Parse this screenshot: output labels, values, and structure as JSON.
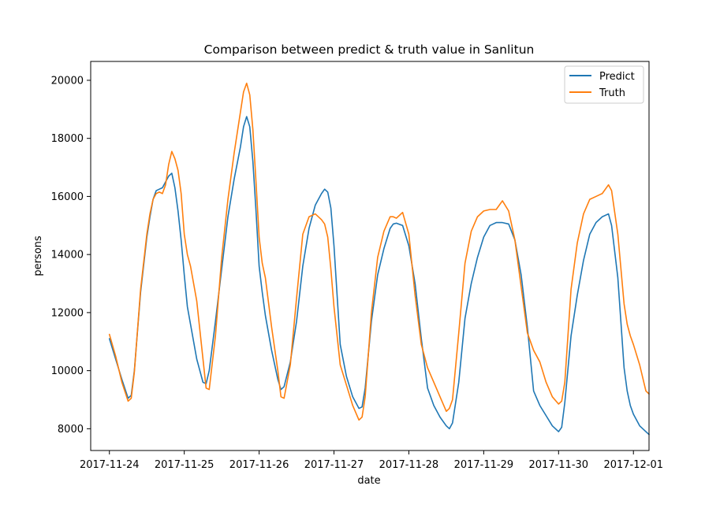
{
  "chart_data": {
    "type": "line",
    "title": "Comparison between predict & truth value in Sanlitun",
    "xlabel": "date",
    "ylabel": "persons",
    "x_ticks": [
      "2017-11-24",
      "2017-11-25",
      "2017-11-26",
      "2017-11-27",
      "2017-11-28",
      "2017-11-29",
      "2017-11-30",
      "2017-12-01"
    ],
    "y_ticks": [
      "8000",
      "10000",
      "12000",
      "14000",
      "16000",
      "18000",
      "20000"
    ],
    "xlim": [
      "2017-11-23 18:00",
      "2017-12-01 05:00"
    ],
    "ylim": [
      7250,
      20650
    ],
    "grid": false,
    "legend_position": "top-right",
    "series": [
      {
        "name": "Predict",
        "color": "#1f77b4",
        "points": [
          [
            "2017-11-24 00:00",
            11100
          ],
          [
            "2017-11-24 02:00",
            10400
          ],
          [
            "2017-11-24 04:00",
            9700
          ],
          [
            "2017-11-24 06:00",
            9050
          ],
          [
            "2017-11-24 07:00",
            9150
          ],
          [
            "2017-11-24 08:00",
            10000
          ],
          [
            "2017-11-24 10:00",
            12700
          ],
          [
            "2017-11-24 12:00",
            14600
          ],
          [
            "2017-11-24 13:00",
            15300
          ],
          [
            "2017-11-24 14:00",
            15900
          ],
          [
            "2017-11-24 15:00",
            16200
          ],
          [
            "2017-11-24 16:00",
            16250
          ],
          [
            "2017-11-24 17:00",
            16300
          ],
          [
            "2017-11-24 18:00",
            16500
          ],
          [
            "2017-11-24 19:00",
            16700
          ],
          [
            "2017-11-24 20:00",
            16800
          ],
          [
            "2017-11-24 21:00",
            16300
          ],
          [
            "2017-11-24 22:00",
            15500
          ],
          [
            "2017-11-24 23:00",
            14500
          ],
          [
            "2017-11-25 00:00",
            13300
          ],
          [
            "2017-11-25 01:00",
            12200
          ],
          [
            "2017-11-25 02:00",
            11600
          ],
          [
            "2017-11-25 04:00",
            10400
          ],
          [
            "2017-11-25 06:00",
            9600
          ],
          [
            "2017-11-25 07:00",
            9550
          ],
          [
            "2017-11-25 08:00",
            10000
          ],
          [
            "2017-11-25 10:00",
            11700
          ],
          [
            "2017-11-25 12:00",
            13500
          ],
          [
            "2017-11-25 14:00",
            15300
          ],
          [
            "2017-11-25 16:00",
            16600
          ],
          [
            "2017-11-25 18:00",
            17700
          ],
          [
            "2017-11-25 19:00",
            18400
          ],
          [
            "2017-11-25 20:00",
            18750
          ],
          [
            "2017-11-25 21:00",
            18400
          ],
          [
            "2017-11-25 22:00",
            17200
          ],
          [
            "2017-11-25 23:00",
            15500
          ],
          [
            "2017-11-26 00:00",
            13600
          ],
          [
            "2017-11-26 01:00",
            12700
          ],
          [
            "2017-11-26 02:00",
            11900
          ],
          [
            "2017-11-26 04:00",
            10700
          ],
          [
            "2017-11-26 06:00",
            9700
          ],
          [
            "2017-11-26 07:00",
            9350
          ],
          [
            "2017-11-26 08:00",
            9450
          ],
          [
            "2017-11-26 10:00",
            10300
          ],
          [
            "2017-11-26 12:00",
            11700
          ],
          [
            "2017-11-26 14:00",
            13600
          ],
          [
            "2017-11-26 16:00",
            14900
          ],
          [
            "2017-11-26 18:00",
            15700
          ],
          [
            "2017-11-26 20:00",
            16100
          ],
          [
            "2017-11-26 21:00",
            16250
          ],
          [
            "2017-11-26 22:00",
            16150
          ],
          [
            "2017-11-26 23:00",
            15600
          ],
          [
            "2017-11-27 00:00",
            14300
          ],
          [
            "2017-11-27 02:00",
            10900
          ],
          [
            "2017-11-27 04:00",
            9800
          ],
          [
            "2017-11-27 06:00",
            9100
          ],
          [
            "2017-11-27 08:00",
            8700
          ],
          [
            "2017-11-27 09:00",
            8750
          ],
          [
            "2017-11-27 10:00",
            9400
          ],
          [
            "2017-11-27 12:00",
            11700
          ],
          [
            "2017-11-27 14:00",
            13300
          ],
          [
            "2017-11-27 16:00",
            14200
          ],
          [
            "2017-11-27 18:00",
            14900
          ],
          [
            "2017-11-27 19:00",
            15050
          ],
          [
            "2017-11-27 20:00",
            15080
          ],
          [
            "2017-11-27 22:00",
            15000
          ],
          [
            "2017-11-28 00:00",
            14300
          ],
          [
            "2017-11-28 02:00",
            13000
          ],
          [
            "2017-11-28 04:00",
            11100
          ],
          [
            "2017-11-28 06:00",
            9400
          ],
          [
            "2017-11-28 08:00",
            8800
          ],
          [
            "2017-11-28 10:00",
            8400
          ],
          [
            "2017-11-28 12:00",
            8100
          ],
          [
            "2017-11-28 13:00",
            8000
          ],
          [
            "2017-11-28 14:00",
            8200
          ],
          [
            "2017-11-28 16:00",
            9600
          ],
          [
            "2017-11-28 18:00",
            11800
          ],
          [
            "2017-11-28 20:00",
            13000
          ],
          [
            "2017-11-28 22:00",
            13900
          ],
          [
            "2017-11-29 00:00",
            14600
          ],
          [
            "2017-11-29 02:00",
            15000
          ],
          [
            "2017-11-29 04:00",
            15100
          ],
          [
            "2017-11-29 06:00",
            15100
          ],
          [
            "2017-11-29 08:00",
            15050
          ],
          [
            "2017-11-29 10:00",
            14500
          ],
          [
            "2017-11-29 12:00",
            13300
          ],
          [
            "2017-11-29 14:00",
            11500
          ],
          [
            "2017-11-29 16:00",
            9300
          ],
          [
            "2017-11-29 18:00",
            8800
          ],
          [
            "2017-11-29 20:00",
            8450
          ],
          [
            "2017-11-29 22:00",
            8100
          ],
          [
            "2017-11-30 00:00",
            7900
          ],
          [
            "2017-11-30 01:00",
            8050
          ],
          [
            "2017-11-30 02:00",
            8900
          ],
          [
            "2017-11-30 04:00",
            11200
          ],
          [
            "2017-11-30 06:00",
            12600
          ],
          [
            "2017-11-30 08:00",
            13800
          ],
          [
            "2017-11-30 10:00",
            14700
          ],
          [
            "2017-11-30 12:00",
            15100
          ],
          [
            "2017-11-30 14:00",
            15300
          ],
          [
            "2017-11-30 16:00",
            15400
          ],
          [
            "2017-11-30 17:00",
            15000
          ],
          [
            "2017-11-30 19:00",
            13200
          ],
          [
            "2017-11-30 21:00",
            10100
          ],
          [
            "2017-11-30 22:00",
            9300
          ],
          [
            "2017-11-30 23:00",
            8800
          ],
          [
            "2017-12-01 00:00",
            8500
          ],
          [
            "2017-12-01 02:00",
            8100
          ],
          [
            "2017-12-01 04:00",
            7900
          ],
          [
            "2017-12-01 05:00",
            7800
          ]
        ]
      },
      {
        "name": "Truth",
        "color": "#ff7f0e",
        "points": [
          [
            "2017-11-24 00:00",
            11250
          ],
          [
            "2017-11-24 02:00",
            10500
          ],
          [
            "2017-11-24 04:00",
            9600
          ],
          [
            "2017-11-24 06:00",
            8950
          ],
          [
            "2017-11-24 07:00",
            9050
          ],
          [
            "2017-11-24 08:00",
            9950
          ],
          [
            "2017-11-24 10:00",
            12800
          ],
          [
            "2017-11-24 12:00",
            14700
          ],
          [
            "2017-11-24 13:00",
            15400
          ],
          [
            "2017-11-24 14:00",
            15900
          ],
          [
            "2017-11-24 15:00",
            16100
          ],
          [
            "2017-11-24 16:00",
            16150
          ],
          [
            "2017-11-24 17:00",
            16100
          ],
          [
            "2017-11-24 18:00",
            16400
          ],
          [
            "2017-11-24 19:00",
            17100
          ],
          [
            "2017-11-24 20:00",
            17550
          ],
          [
            "2017-11-24 21:00",
            17300
          ],
          [
            "2017-11-24 22:00",
            16900
          ],
          [
            "2017-11-24 23:00",
            16100
          ],
          [
            "2017-11-25 00:00",
            14700
          ],
          [
            "2017-11-25 01:00",
            14000
          ],
          [
            "2017-11-25 02:00",
            13600
          ],
          [
            "2017-11-25 04:00",
            12400
          ],
          [
            "2017-11-25 06:00",
            10400
          ],
          [
            "2017-11-25 07:00",
            9400
          ],
          [
            "2017-11-25 08:00",
            9350
          ],
          [
            "2017-11-25 10:00",
            11200
          ],
          [
            "2017-11-25 12:00",
            13900
          ],
          [
            "2017-11-25 14:00",
            15900
          ],
          [
            "2017-11-25 16:00",
            17500
          ],
          [
            "2017-11-25 18:00",
            18900
          ],
          [
            "2017-11-25 19:00",
            19600
          ],
          [
            "2017-11-25 20:00",
            19900
          ],
          [
            "2017-11-25 21:00",
            19500
          ],
          [
            "2017-11-25 22:00",
            18300
          ],
          [
            "2017-11-25 23:00",
            16500
          ],
          [
            "2017-11-26 00:00",
            14600
          ],
          [
            "2017-11-26 01:00",
            13700
          ],
          [
            "2017-11-26 02:00",
            13200
          ],
          [
            "2017-11-26 04:00",
            11500
          ],
          [
            "2017-11-26 06:00",
            10000
          ],
          [
            "2017-11-26 07:00",
            9100
          ],
          [
            "2017-11-26 08:00",
            9050
          ],
          [
            "2017-11-26 10:00",
            10200
          ],
          [
            "2017-11-26 12:00",
            12500
          ],
          [
            "2017-11-26 14:00",
            14700
          ],
          [
            "2017-11-26 16:00",
            15300
          ],
          [
            "2017-11-26 18:00",
            15400
          ],
          [
            "2017-11-26 20:00",
            15200
          ],
          [
            "2017-11-26 21:00",
            15050
          ],
          [
            "2017-11-26 22:00",
            14600
          ],
          [
            "2017-11-26 23:00",
            13500
          ],
          [
            "2017-11-27 00:00",
            12200
          ],
          [
            "2017-11-27 02:00",
            10200
          ],
          [
            "2017-11-27 04:00",
            9500
          ],
          [
            "2017-11-27 06:00",
            8800
          ],
          [
            "2017-11-27 08:00",
            8300
          ],
          [
            "2017-11-27 09:00",
            8400
          ],
          [
            "2017-11-27 10:00",
            9100
          ],
          [
            "2017-11-27 12:00",
            12000
          ],
          [
            "2017-11-27 14:00",
            13900
          ],
          [
            "2017-11-27 16:00",
            14800
          ],
          [
            "2017-11-27 18:00",
            15300
          ],
          [
            "2017-11-27 19:00",
            15300
          ],
          [
            "2017-11-27 20:00",
            15250
          ],
          [
            "2017-11-27 22:00",
            15450
          ],
          [
            "2017-11-28 00:00",
            14700
          ],
          [
            "2017-11-28 02:00",
            12600
          ],
          [
            "2017-11-28 04:00",
            10900
          ],
          [
            "2017-11-28 06:00",
            10100
          ],
          [
            "2017-11-28 08:00",
            9600
          ],
          [
            "2017-11-28 10:00",
            9100
          ],
          [
            "2017-11-28 12:00",
            8600
          ],
          [
            "2017-11-28 13:00",
            8700
          ],
          [
            "2017-11-28 14:00",
            9000
          ],
          [
            "2017-11-28 16:00",
            11300
          ],
          [
            "2017-11-28 18:00",
            13700
          ],
          [
            "2017-11-28 20:00",
            14800
          ],
          [
            "2017-11-28 22:00",
            15300
          ],
          [
            "2017-11-29 00:00",
            15500
          ],
          [
            "2017-11-29 02:00",
            15550
          ],
          [
            "2017-11-29 04:00",
            15550
          ],
          [
            "2017-11-29 06:00",
            15850
          ],
          [
            "2017-11-29 08:00",
            15500
          ],
          [
            "2017-11-29 10:00",
            14500
          ],
          [
            "2017-11-29 12:00",
            12900
          ],
          [
            "2017-11-29 14:00",
            11300
          ],
          [
            "2017-11-29 16:00",
            10700
          ],
          [
            "2017-11-29 18:00",
            10300
          ],
          [
            "2017-11-29 20:00",
            9600
          ],
          [
            "2017-11-29 22:00",
            9100
          ],
          [
            "2017-11-30 00:00",
            8850
          ],
          [
            "2017-11-30 01:00",
            8950
          ],
          [
            "2017-11-30 02:00",
            9600
          ],
          [
            "2017-11-30 04:00",
            12800
          ],
          [
            "2017-11-30 06:00",
            14400
          ],
          [
            "2017-11-30 08:00",
            15400
          ],
          [
            "2017-11-30 10:00",
            15900
          ],
          [
            "2017-11-30 12:00",
            16000
          ],
          [
            "2017-11-30 14:00",
            16100
          ],
          [
            "2017-11-30 16:00",
            16400
          ],
          [
            "2017-11-30 17:00",
            16200
          ],
          [
            "2017-11-30 19:00",
            14700
          ],
          [
            "2017-11-30 21:00",
            12300
          ],
          [
            "2017-11-30 22:00",
            11600
          ],
          [
            "2017-11-30 23:00",
            11200
          ],
          [
            "2017-12-01 00:00",
            10900
          ],
          [
            "2017-12-01 02:00",
            10200
          ],
          [
            "2017-12-01 04:00",
            9300
          ],
          [
            "2017-12-01 05:00",
            9200
          ]
        ]
      }
    ]
  }
}
